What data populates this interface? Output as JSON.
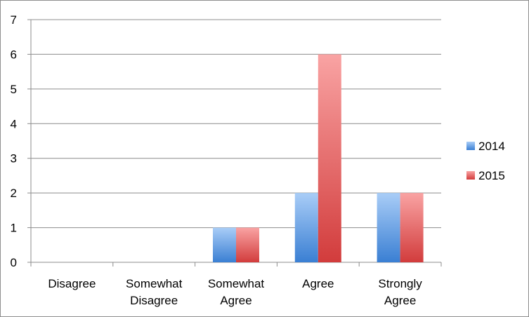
{
  "chart_data": {
    "type": "bar",
    "categories": [
      [
        "Disagree"
      ],
      [
        "Somewhat",
        "Disagree"
      ],
      [
        "Somewhat",
        "Agree"
      ],
      [
        "Agree"
      ],
      [
        "Strongly",
        "Agree"
      ]
    ],
    "series": [
      {
        "name": "2014",
        "values": [
          0,
          0,
          1,
          2,
          2
        ],
        "color_light": "#a9cdf7",
        "color_dark": "#3a7fd3"
      },
      {
        "name": "2015",
        "values": [
          0,
          0,
          1,
          6,
          2
        ],
        "color_light": "#f9a3a3",
        "color_dark": "#d23c3c"
      }
    ],
    "yticks": [
      0,
      1,
      2,
      3,
      4,
      5,
      6,
      7
    ],
    "ylim": [
      0,
      7
    ],
    "grid": true,
    "legend_position": "right"
  }
}
